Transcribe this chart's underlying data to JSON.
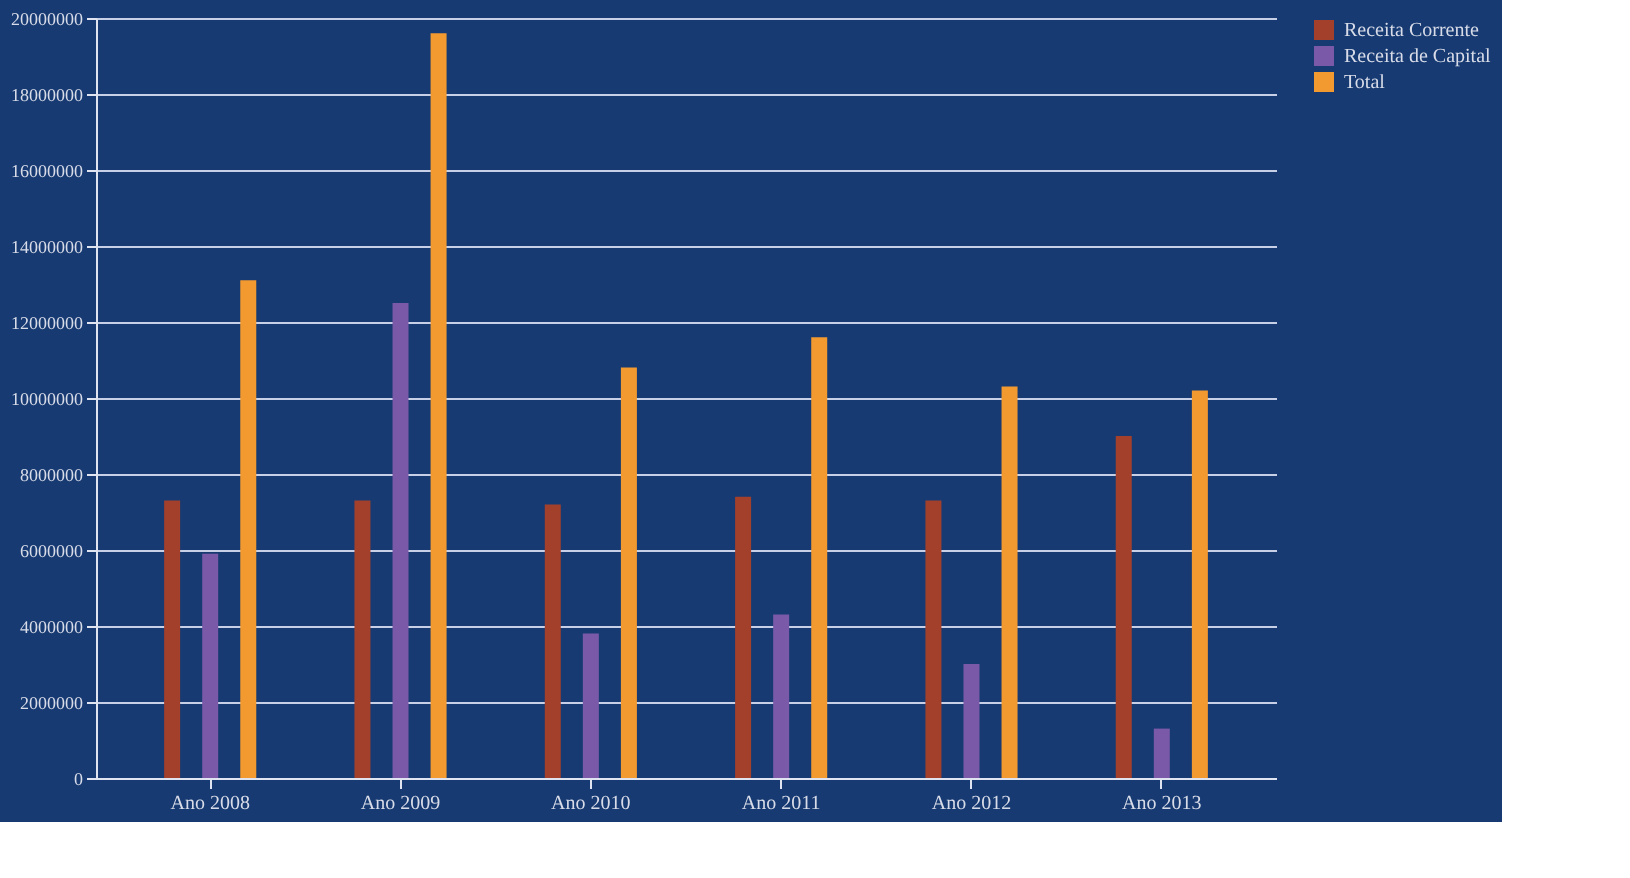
{
  "chart_data": {
    "type": "bar",
    "categories": [
      "Ano 2008",
      "Ano 2009",
      "Ano 2010",
      "Ano 2011",
      "Ano 2012",
      "Ano 2013"
    ],
    "series": [
      {
        "name": "Receita Corrente",
        "color": "#a3402c",
        "values": [
          7300000,
          7300000,
          7200000,
          7400000,
          7300000,
          9000000
        ]
      },
      {
        "name": "Receita de Capital",
        "color": "#7a5aa8",
        "values": [
          5900000,
          12500000,
          3800000,
          4300000,
          3000000,
          1300000
        ]
      },
      {
        "name": "Total",
        "color": "#f29a30",
        "values": [
          13100000,
          19600000,
          10800000,
          11600000,
          10300000,
          10200000
        ]
      }
    ],
    "ylim": [
      0,
      20000000
    ],
    "yticks": [
      0,
      2000000,
      4000000,
      6000000,
      8000000,
      10000000,
      12000000,
      14000000,
      16000000,
      18000000,
      20000000
    ],
    "grid": "y",
    "legend": "right"
  }
}
